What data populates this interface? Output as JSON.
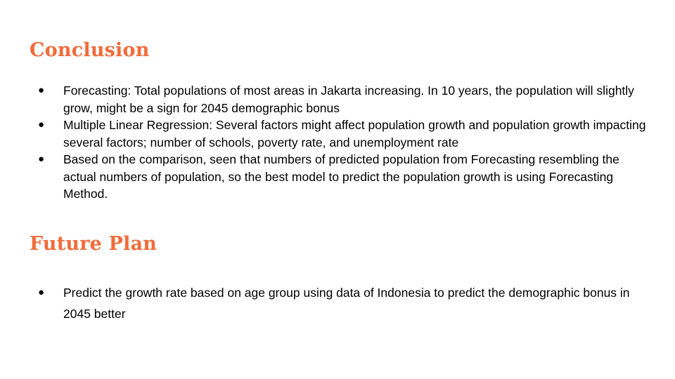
{
  "conclusion": {
    "title": "Conclusion",
    "items": [
      "Forecasting: Total populations of most areas in Jakarta increasing. In 10 years, the population will slightly grow, might be a sign for 2045 demographic bonus",
      "Multiple Linear Regression: Several factors might affect population growth and population growth impacting several factors; number of schools, poverty rate, and unemployment rate",
      "Based on the comparison, seen that numbers of predicted population from Forecasting resembling the actual numbers of population, so the best model to predict the population growth is using Forecasting Method."
    ]
  },
  "future_plan": {
    "title": "Future Plan",
    "items": [
      "Predict the growth rate based on age group using data of Indonesia to predict the demographic bonus in 2045 better"
    ]
  },
  "colors": {
    "heading": "#f26b3a",
    "text": "#000000",
    "background": "#ffffff"
  },
  "icons": {
    "bullet": "bullet-dot-icon"
  }
}
